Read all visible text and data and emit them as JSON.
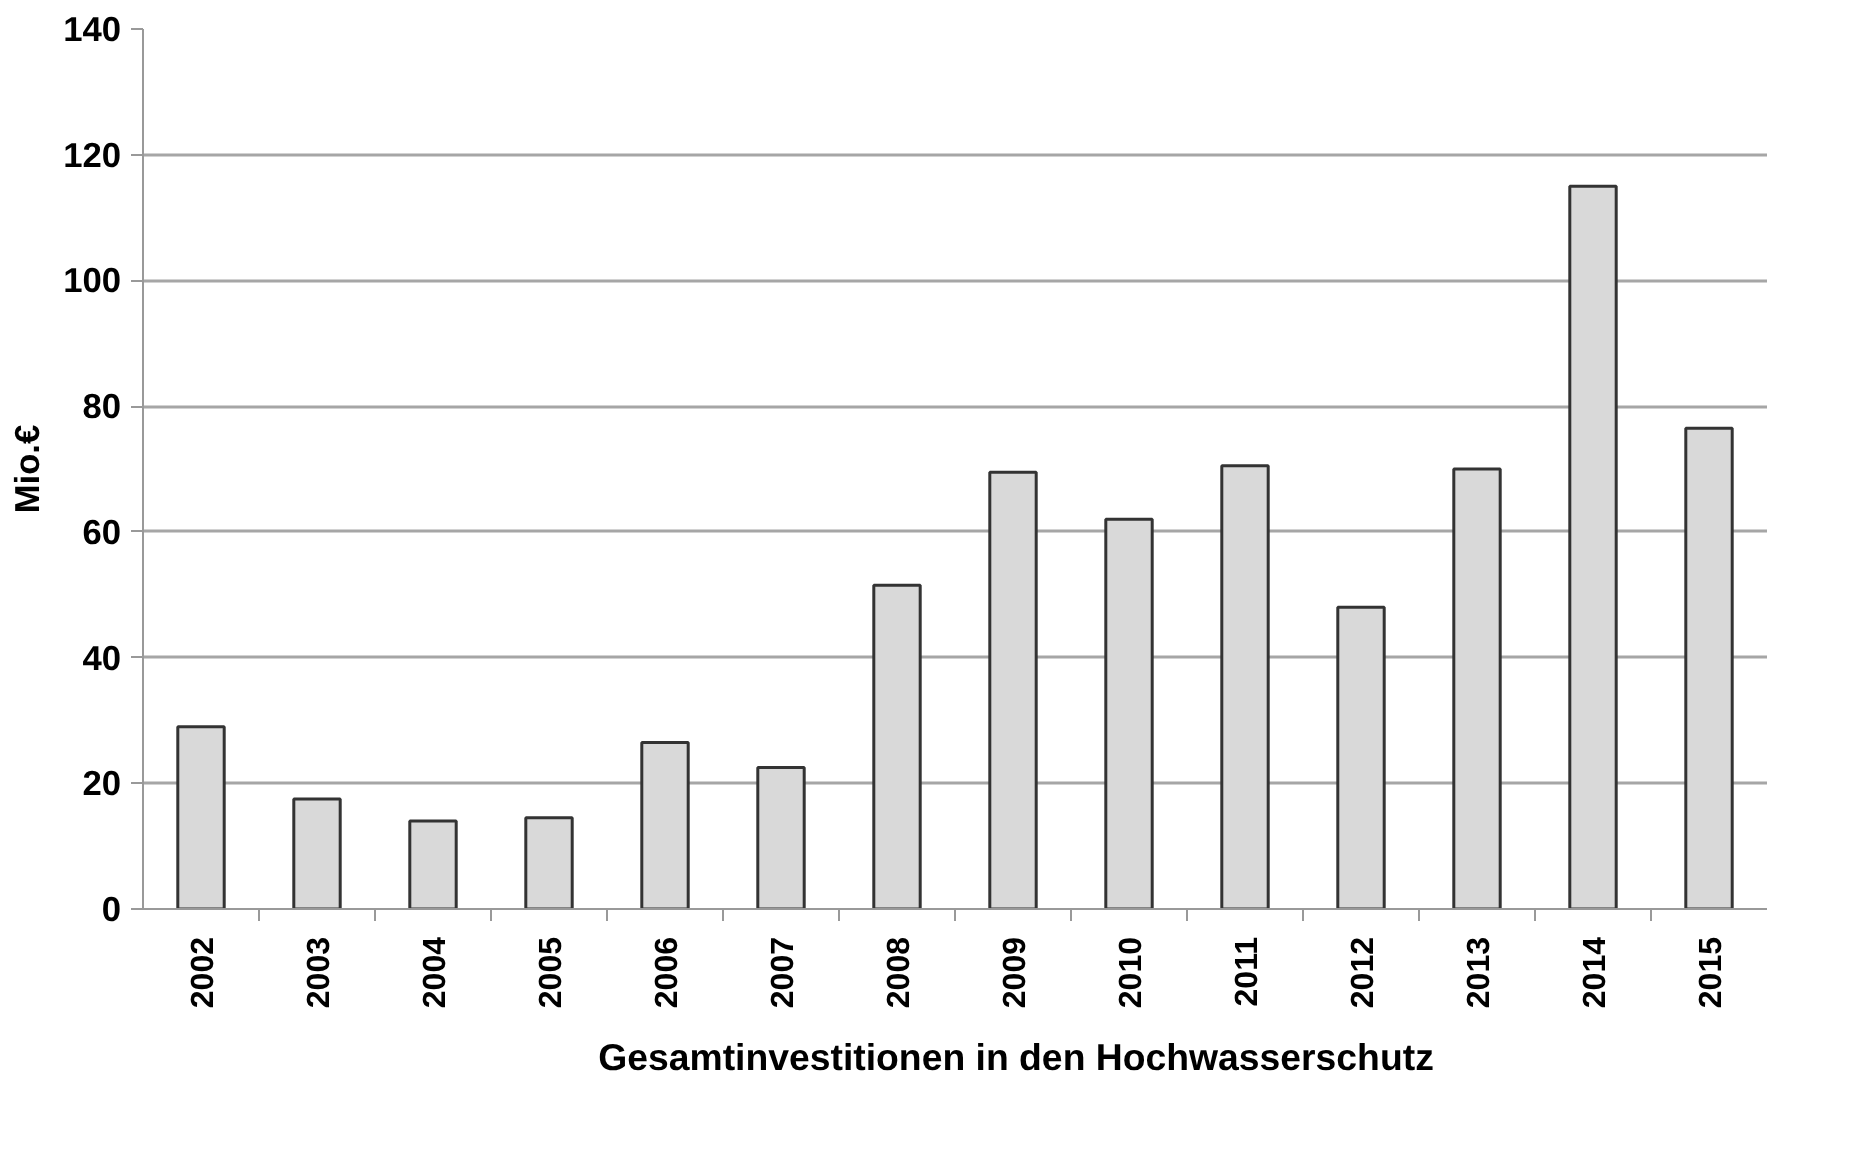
{
  "chart_data": {
    "type": "bar",
    "ylabel": "Mio.€",
    "categories": [
      "2002",
      "2003",
      "2004",
      "2005",
      "2006",
      "2007",
      "2008",
      "2009",
      "2010",
      "2011",
      "2012",
      "2013",
      "2014",
      "2015"
    ],
    "series": [
      {
        "name": "Gesamtinvestitionen in den Hochwasserschutz",
        "color": "#d9d9d9",
        "values": [
          29,
          17.5,
          14,
          14.5,
          26.5,
          22.5,
          51.5,
          69.5,
          62,
          70.5,
          48,
          70,
          115,
          76.5
        ]
      }
    ],
    "ylim": [
      0,
      140
    ],
    "yticks": [
      0,
      20,
      40,
      60,
      80,
      100,
      120,
      140
    ],
    "grid": "y",
    "legend": "bottom"
  }
}
